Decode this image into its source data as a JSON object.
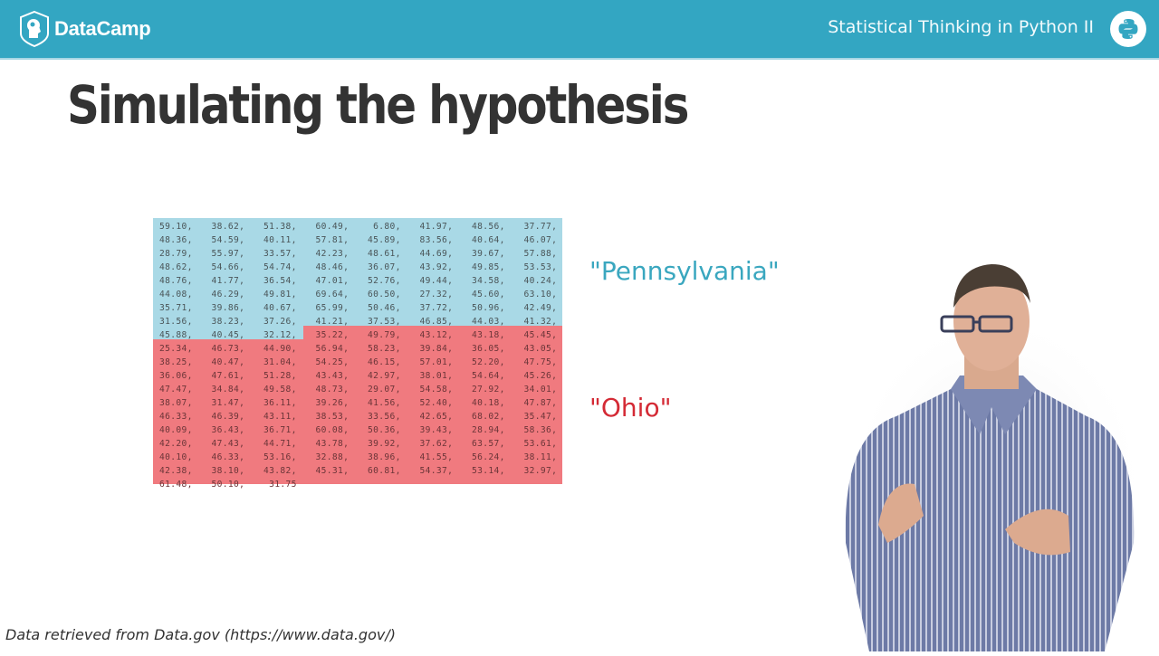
{
  "header": {
    "brand": "DataCamp",
    "course_title": "Statistical Thinking in Python II",
    "brand_color": "#33a6c2",
    "icons": {
      "logo": "datacamp-logo-icon",
      "course": "python-logo-icon"
    }
  },
  "slide": {
    "title": "Simulating the hypothesis",
    "labels": {
      "pennsylvania": "\"Pennsylvania\"",
      "ohio": "\"Ohio\""
    },
    "colors": {
      "pennsylvania_bg": "#a9d9e6",
      "ohio_bg": "#f07a7f",
      "pennsylvania_label": "#3aa7bf",
      "ohio_label": "#d42a35"
    },
    "footer": "Data retrieved from Data.gov (https://www.data.gov/)"
  },
  "data_rows": [
    {
      "group": "pa",
      "cells": [
        "59.10,",
        "38.62,",
        "51.38,",
        "60.49,",
        "6.80,",
        "41.97,",
        "48.56,",
        "37.77,"
      ]
    },
    {
      "group": "pa",
      "cells": [
        "48.36,",
        "54.59,",
        "40.11,",
        "57.81,",
        "45.89,",
        "83.56,",
        "40.64,",
        "46.07,"
      ]
    },
    {
      "group": "pa",
      "cells": [
        "28.79,",
        "55.97,",
        "33.57,",
        "42.23,",
        "48.61,",
        "44.69,",
        "39.67,",
        "57.88,"
      ]
    },
    {
      "group": "pa",
      "cells": [
        "48.62,",
        "54.66,",
        "54.74,",
        "48.46,",
        "36.07,",
        "43.92,",
        "49.85,",
        "53.53,"
      ]
    },
    {
      "group": "pa",
      "cells": [
        "48.76,",
        "41.77,",
        "36.54,",
        "47.01,",
        "52.76,",
        "49.44,",
        "34.58,",
        "40.24,"
      ]
    },
    {
      "group": "pa",
      "cells": [
        "44.08,",
        "46.29,",
        "49.81,",
        "69.64,",
        "60.50,",
        "27.32,",
        "45.60,",
        "63.10,"
      ]
    },
    {
      "group": "pa",
      "cells": [
        "35.71,",
        "39.86,",
        "40.67,",
        "65.99,",
        "50.46,",
        "37.72,",
        "50.96,",
        "42.49,"
      ]
    },
    {
      "group": "pa",
      "cells": [
        "31.56,",
        "38.23,",
        "37.26,",
        "41.21,",
        "37.53,",
        "46.85,",
        "44.03,",
        "41.32,"
      ]
    },
    {
      "group": "mixed",
      "cells": [
        "45.88,",
        "40.45,",
        "32.12,",
        "35.22,",
        "49.79,",
        "43.12,",
        "43.18,",
        "45.45,"
      ]
    },
    {
      "group": "oh",
      "cells": [
        "25.34,",
        "46.73,",
        "44.90,",
        "56.94,",
        "58.23,",
        "39.84,",
        "36.05,",
        "43.05,"
      ]
    },
    {
      "group": "oh",
      "cells": [
        "38.25,",
        "40.47,",
        "31.04,",
        "54.25,",
        "46.15,",
        "57.01,",
        "52.20,",
        "47.75,"
      ]
    },
    {
      "group": "oh",
      "cells": [
        "36.06,",
        "47.61,",
        "51.28,",
        "43.43,",
        "42.97,",
        "38.01,",
        "54.64,",
        "45.26,"
      ]
    },
    {
      "group": "oh",
      "cells": [
        "47.47,",
        "34.84,",
        "49.58,",
        "48.73,",
        "29.07,",
        "54.58,",
        "27.92,",
        "34.01,"
      ]
    },
    {
      "group": "oh",
      "cells": [
        "38.07,",
        "31.47,",
        "36.11,",
        "39.26,",
        "41.56,",
        "52.40,",
        "40.18,",
        "47.87,"
      ]
    },
    {
      "group": "oh",
      "cells": [
        "46.33,",
        "46.39,",
        "43.11,",
        "38.53,",
        "33.56,",
        "42.65,",
        "68.02,",
        "35.47,"
      ]
    },
    {
      "group": "oh",
      "cells": [
        "40.09,",
        "36.43,",
        "36.71,",
        "60.08,",
        "50.36,",
        "39.43,",
        "28.94,",
        "58.36,"
      ]
    },
    {
      "group": "oh",
      "cells": [
        "42.20,",
        "47.43,",
        "44.71,",
        "43.78,",
        "39.92,",
        "37.62,",
        "63.57,",
        "53.61,"
      ]
    },
    {
      "group": "oh",
      "cells": [
        "40.10,",
        "46.33,",
        "53.16,",
        "32.88,",
        "38.96,",
        "41.55,",
        "56.24,",
        "38.11,"
      ]
    },
    {
      "group": "oh",
      "cells": [
        "42.38,",
        "38.10,",
        "43.82,",
        "45.31,",
        "60.81,",
        "54.37,",
        "53.14,",
        "32.97,"
      ]
    },
    {
      "group": "oh",
      "cells": [
        "61.48,",
        "50.10,",
        "31.75",
        "",
        "",
        "",
        "",
        ""
      ]
    }
  ]
}
